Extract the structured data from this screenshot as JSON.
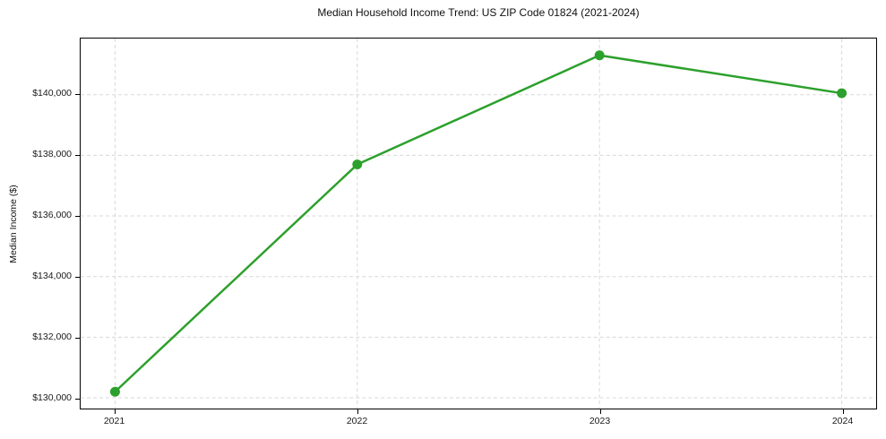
{
  "chart_data": {
    "type": "line",
    "title": "Median Household Income Trend: US ZIP Code 01824 (2021-2024)",
    "ylabel": "Median Income ($)",
    "xlabel": "",
    "categories": [
      "2021",
      "2022",
      "2023",
      "2024"
    ],
    "series": [
      {
        "name": "Median Household Income",
        "values": [
          130200,
          137700,
          141300,
          140050
        ]
      }
    ],
    "yticks": [
      {
        "value": 130000,
        "label": "$130,000"
      },
      {
        "value": 132000,
        "label": "$132,000"
      },
      {
        "value": 134000,
        "label": "$134,000"
      },
      {
        "value": 136000,
        "label": "$136,000"
      },
      {
        "value": 138000,
        "label": "$138,000"
      },
      {
        "value": 140000,
        "label": "$140,000"
      }
    ],
    "ylim": [
      129645,
      141855
    ],
    "grid": true,
    "grid_style": "dashed",
    "legend_position": "none",
    "line_color": "#2ca02c",
    "marker": "circle",
    "frame_color": "#000000",
    "background_color": "#ffffff"
  }
}
